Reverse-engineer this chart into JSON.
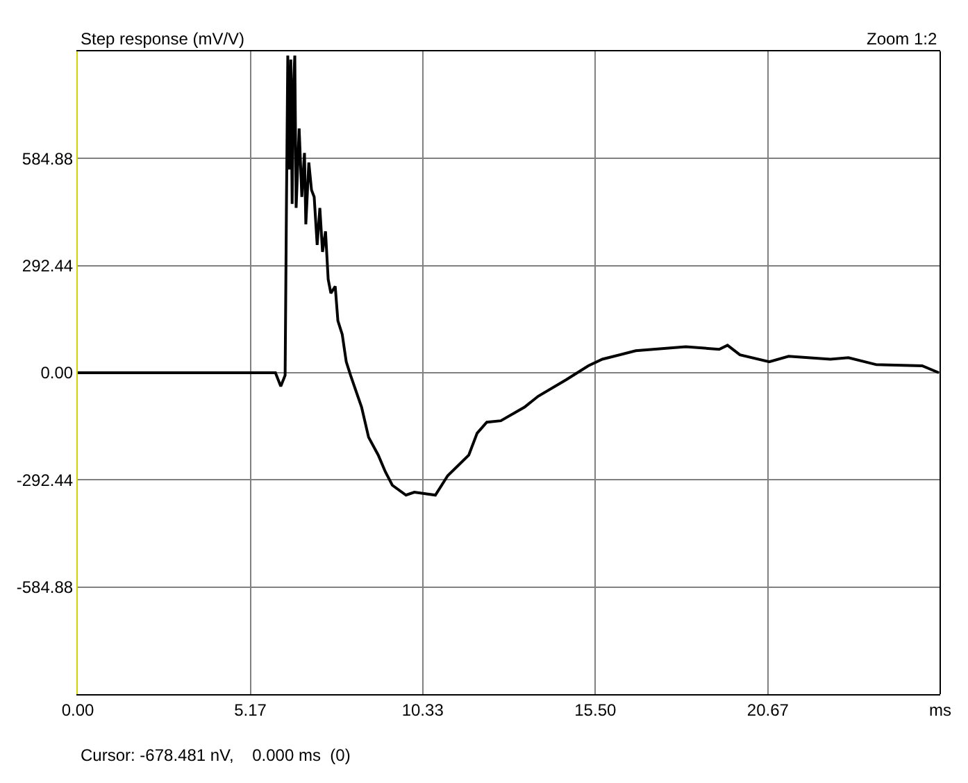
{
  "chart_data": {
    "type": "line",
    "title": "Step response (mV/V)",
    "annotations": [
      "Zoom 1:2",
      "Cursor: -678.481 nV,    0.000 ms  (0)"
    ],
    "x": [
      0,
      5.92,
      6.08,
      6.21,
      6.25,
      6.29,
      6.33,
      6.38,
      6.42,
      6.46,
      6.5,
      6.54,
      6.63,
      6.71,
      6.79,
      6.83,
      6.92,
      7.0,
      7.08,
      7.17,
      7.25,
      7.33,
      7.42,
      7.5,
      7.58,
      7.71,
      7.79,
      7.92,
      8.04,
      8.17,
      8.5,
      8.71,
      9.0,
      9.21,
      9.42,
      9.83,
      10.08,
      10.71,
      11.08,
      11.71,
      11.96,
      12.25,
      12.67,
      13.38,
      13.79,
      14.63,
      15.29,
      15.71,
      16.71,
      18.21,
      19.21,
      19.46,
      19.83,
      20.71,
      21.29,
      22.54,
      23.08,
      23.92,
      25.29,
      25.79
    ],
    "series": [
      {
        "color": "#000000",
        "values": [
          0,
          0,
          -37,
          -7,
          461,
          866,
          555,
          855,
          461,
          780,
          866,
          450,
          667,
          480,
          600,
          405,
          574,
          499,
          480,
          349,
          450,
          330,
          386,
          255,
          217,
          236,
          142,
          105,
          30,
          -7,
          -94,
          -176,
          -225,
          -270,
          -307,
          -334,
          -326,
          -334,
          -281,
          -225,
          -165,
          -135,
          -131,
          -94,
          -64,
          -19,
          19,
          37,
          60,
          71,
          64,
          75,
          49,
          30,
          45,
          37,
          41,
          22,
          19,
          0
        ]
      }
    ],
    "xlim": [
      0,
      25.83
    ],
    "xticks": [
      {
        "value": 0,
        "label": "0.00"
      },
      {
        "value": 5.17,
        "label": "5.17"
      },
      {
        "value": 10.33,
        "label": "10.33"
      },
      {
        "value": 15.5,
        "label": "15.50"
      },
      {
        "value": 20.67,
        "label": "20.67"
      },
      {
        "value": 25.83,
        "label": "ms"
      }
    ],
    "ylim": [
      -877.32,
      877.32
    ],
    "yticks": [
      {
        "value": -584.88,
        "label": "-584.88"
      },
      {
        "value": -292.44,
        "label": "-292.44"
      },
      {
        "value": 0,
        "label": "0.00"
      },
      {
        "value": 292.44,
        "label": "292.44"
      },
      {
        "value": 584.88,
        "label": "584.88"
      }
    ],
    "grid": true,
    "marker": "none",
    "line_style": "solid"
  }
}
